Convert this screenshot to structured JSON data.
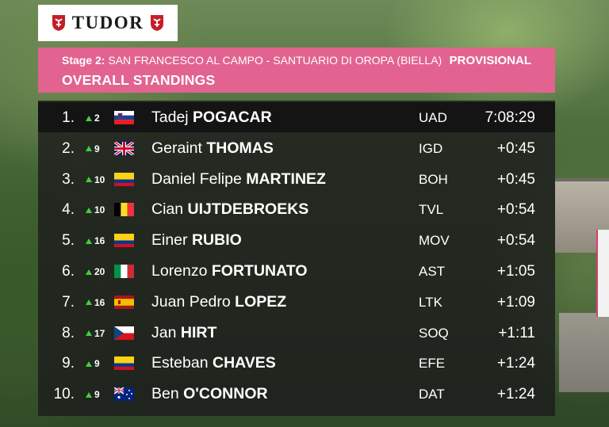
{
  "brand": {
    "name": "TUDOR"
  },
  "header": {
    "stage_label": "Stage 2:",
    "route": "SAN FRANCESCO AL CAMPO - SANTUARIO DI OROPA (BIELLA)",
    "status": "PROVISIONAL",
    "title": "OVERALL STANDINGS"
  },
  "colors": {
    "header": "#e2638f",
    "gain": "#3fd13f"
  },
  "standings": [
    {
      "pos": "1.",
      "gain": "2",
      "flag": "slovenia-flag",
      "first": "Tadej",
      "last": "POGACAR",
      "team": "UAD",
      "time": "7:08:29"
    },
    {
      "pos": "2.",
      "gain": "9",
      "flag": "uk-flag",
      "first": "Geraint",
      "last": "THOMAS",
      "team": "IGD",
      "time": "+0:45"
    },
    {
      "pos": "3.",
      "gain": "10",
      "flag": "colombia-flag",
      "first": "Daniel Felipe",
      "last": "MARTINEZ",
      "team": "BOH",
      "time": "+0:45"
    },
    {
      "pos": "4.",
      "gain": "10",
      "flag": "belgium-flag",
      "first": "Cian",
      "last": "UIJTDEBROEKS",
      "team": "TVL",
      "time": "+0:54"
    },
    {
      "pos": "5.",
      "gain": "16",
      "flag": "colombia-flag",
      "first": "Einer",
      "last": "RUBIO",
      "team": "MOV",
      "time": "+0:54"
    },
    {
      "pos": "6.",
      "gain": "20",
      "flag": "italy-flag",
      "first": "Lorenzo",
      "last": "FORTUNATO",
      "team": "AST",
      "time": "+1:05"
    },
    {
      "pos": "7.",
      "gain": "16",
      "flag": "spain-flag",
      "first": "Juan Pedro",
      "last": "LOPEZ",
      "team": "LTK",
      "time": "+1:09"
    },
    {
      "pos": "8.",
      "gain": "17",
      "flag": "czech-flag",
      "first": "Jan",
      "last": "HIRT",
      "team": "SOQ",
      "time": "+1:11"
    },
    {
      "pos": "9.",
      "gain": "9",
      "flag": "colombia-flag",
      "first": "Esteban",
      "last": "CHAVES",
      "team": "EFE",
      "time": "+1:24"
    },
    {
      "pos": "10.",
      "gain": "9",
      "flag": "australia-flag",
      "first": "Ben",
      "last": "O'CONNOR",
      "team": "DAT",
      "time": "+1:24"
    }
  ]
}
